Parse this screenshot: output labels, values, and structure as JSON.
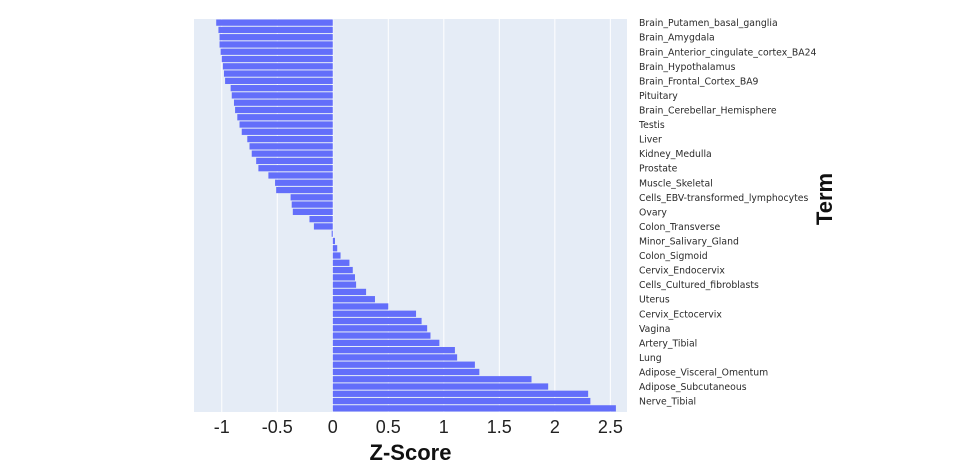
{
  "chart_data": {
    "type": "bar",
    "orientation": "horizontal",
    "xlabel": "Z-Score",
    "ylabel": "Term",
    "xlim": [
      -1.25,
      2.65
    ],
    "x_ticks": [
      -1,
      -0.5,
      0,
      0.5,
      1,
      1.5,
      2,
      2.5
    ],
    "x_tick_labels": [
      "-1",
      "-0.5",
      "0",
      "0.5",
      "1",
      "1.5",
      "2",
      "2.5"
    ],
    "grid": true,
    "colors": {
      "bar": "#636efa",
      "plot_background": "#e5ecf6",
      "grid": "#ffffff"
    },
    "bars_top_to_bottom": [
      {
        "term": "Brain_Putamen_basal_ganglia",
        "value": -1.05
      },
      {
        "term": "",
        "value": -1.03
      },
      {
        "term": "Brain_Amygdala",
        "value": -1.02
      },
      {
        "term": "",
        "value": -1.02
      },
      {
        "term": "Brain_Anterior_cingulate_cortex_BA24",
        "value": -1.01
      },
      {
        "term": "",
        "value": -1.0
      },
      {
        "term": "Brain_Hypothalamus",
        "value": -0.99
      },
      {
        "term": "",
        "value": -0.98
      },
      {
        "term": "Brain_Frontal_Cortex_BA9",
        "value": -0.97
      },
      {
        "term": "",
        "value": -0.92
      },
      {
        "term": "Pituitary",
        "value": -0.91
      },
      {
        "term": "",
        "value": -0.89
      },
      {
        "term": "Brain_Cerebellar_Hemisphere",
        "value": -0.88
      },
      {
        "term": "",
        "value": -0.86
      },
      {
        "term": "Testis",
        "value": -0.84
      },
      {
        "term": "",
        "value": -0.82
      },
      {
        "term": "Liver",
        "value": -0.77
      },
      {
        "term": "",
        "value": -0.75
      },
      {
        "term": "Kidney_Medulla",
        "value": -0.73
      },
      {
        "term": "",
        "value": -0.69
      },
      {
        "term": "Prostate",
        "value": -0.67
      },
      {
        "term": "",
        "value": -0.58
      },
      {
        "term": "Muscle_Skeletal",
        "value": -0.52
      },
      {
        "term": "",
        "value": -0.51
      },
      {
        "term": "Cells_EBV-transformed_lymphocytes",
        "value": -0.38
      },
      {
        "term": "",
        "value": -0.37
      },
      {
        "term": "Ovary",
        "value": -0.36
      },
      {
        "term": "",
        "value": -0.21
      },
      {
        "term": "Colon_Transverse",
        "value": -0.17
      },
      {
        "term": "",
        "value": -0.01
      },
      {
        "term": "Minor_Salivary_Gland",
        "value": 0.02
      },
      {
        "term": "",
        "value": 0.04
      },
      {
        "term": "Colon_Sigmoid",
        "value": 0.07
      },
      {
        "term": "",
        "value": 0.15
      },
      {
        "term": "Cervix_Endocervix",
        "value": 0.18
      },
      {
        "term": "",
        "value": 0.2
      },
      {
        "term": "Cells_Cultured_fibroblasts",
        "value": 0.21
      },
      {
        "term": "",
        "value": 0.3
      },
      {
        "term": "Uterus",
        "value": 0.38
      },
      {
        "term": "",
        "value": 0.5
      },
      {
        "term": "Cervix_Ectocervix",
        "value": 0.75
      },
      {
        "term": "",
        "value": 0.8
      },
      {
        "term": "Vagina",
        "value": 0.85
      },
      {
        "term": "",
        "value": 0.88
      },
      {
        "term": "Artery_Tibial",
        "value": 0.96
      },
      {
        "term": "",
        "value": 1.1
      },
      {
        "term": "Lung",
        "value": 1.12
      },
      {
        "term": "",
        "value": 1.28
      },
      {
        "term": "Adipose_Visceral_Omentum",
        "value": 1.32
      },
      {
        "term": "",
        "value": 1.79
      },
      {
        "term": "Adipose_Subcutaneous",
        "value": 1.94
      },
      {
        "term": "",
        "value": 2.3
      },
      {
        "term": "Nerve_Tibial",
        "value": 2.32
      },
      {
        "term": "",
        "value": 2.55
      }
    ]
  }
}
